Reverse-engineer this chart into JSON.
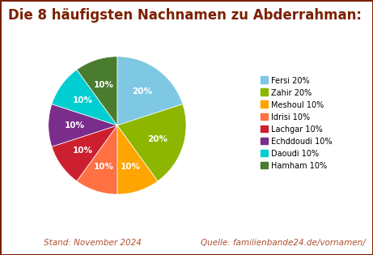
{
  "title": "Die 8 häufigsten Nachnamen zu Abderrahman:",
  "title_color": "#7B2000",
  "title_fontsize": 12,
  "footer_left": "Stand: November 2024",
  "footer_right": "Quelle: familienbande24.de/vornamen/",
  "footer_color": "#b05030",
  "footer_fontsize": 7.5,
  "labels": [
    "Fersi",
    "Zahir",
    "Meshoul",
    "Idrisi",
    "Lachgar",
    "Echddoudi",
    "Daoudi",
    "Hamham"
  ],
  "values": [
    20,
    20,
    10,
    10,
    10,
    10,
    10,
    10
  ],
  "colors": [
    "#7EC8E3",
    "#8DB600",
    "#FFA500",
    "#FF7043",
    "#CC2030",
    "#7B2D8B",
    "#00CED1",
    "#4A7C2F"
  ],
  "border_color": "#7B2000",
  "background_color": "#FFFFFF",
  "startangle": 90,
  "pct_labels": [
    "20%",
    "20%",
    "10%",
    "10%",
    "10%",
    "10%",
    "10%",
    "10%"
  ]
}
